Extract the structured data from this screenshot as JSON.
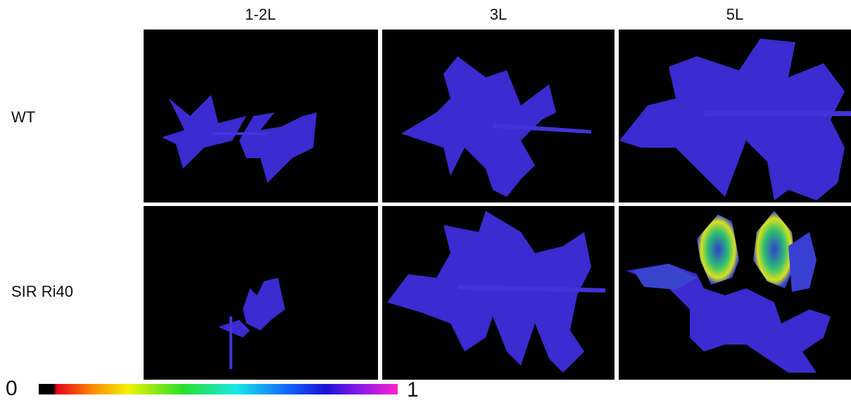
{
  "columns": [
    "1-2L",
    "3L",
    "5L"
  ],
  "rows": [
    "WT",
    "SIR Ri40"
  ],
  "colorbar": {
    "min_label": "0",
    "max_label": "1"
  }
}
